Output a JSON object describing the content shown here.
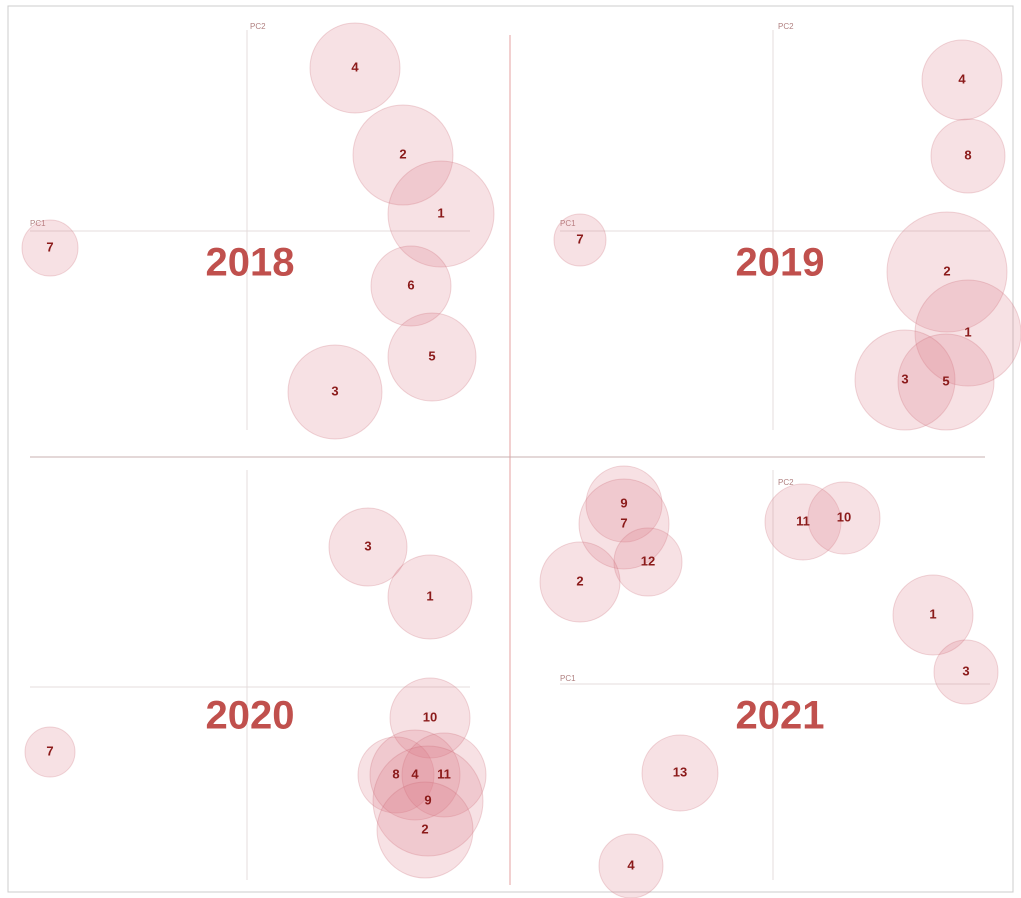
{
  "panels": [
    {
      "title": "2018",
      "pc1": "PC1",
      "pc2": "PC2",
      "bubbles": [
        "4",
        "2",
        "1",
        "7",
        "6",
        "5",
        "3"
      ]
    },
    {
      "title": "2019",
      "pc1": "PC1",
      "pc2": "PC2",
      "bubbles": [
        "4",
        "8",
        "7",
        "2",
        "1",
        "3",
        "5"
      ]
    },
    {
      "title": "2020",
      "bubbles": [
        "3",
        "1",
        "7",
        "10",
        "8",
        "4",
        "11",
        "9",
        "2"
      ]
    },
    {
      "title": "2021",
      "pc1": "PC1",
      "pc2": "PC2",
      "bubbles": [
        "9",
        "7",
        "12",
        "2",
        "11",
        "10",
        "1",
        "3",
        "13",
        "4"
      ]
    }
  ]
}
